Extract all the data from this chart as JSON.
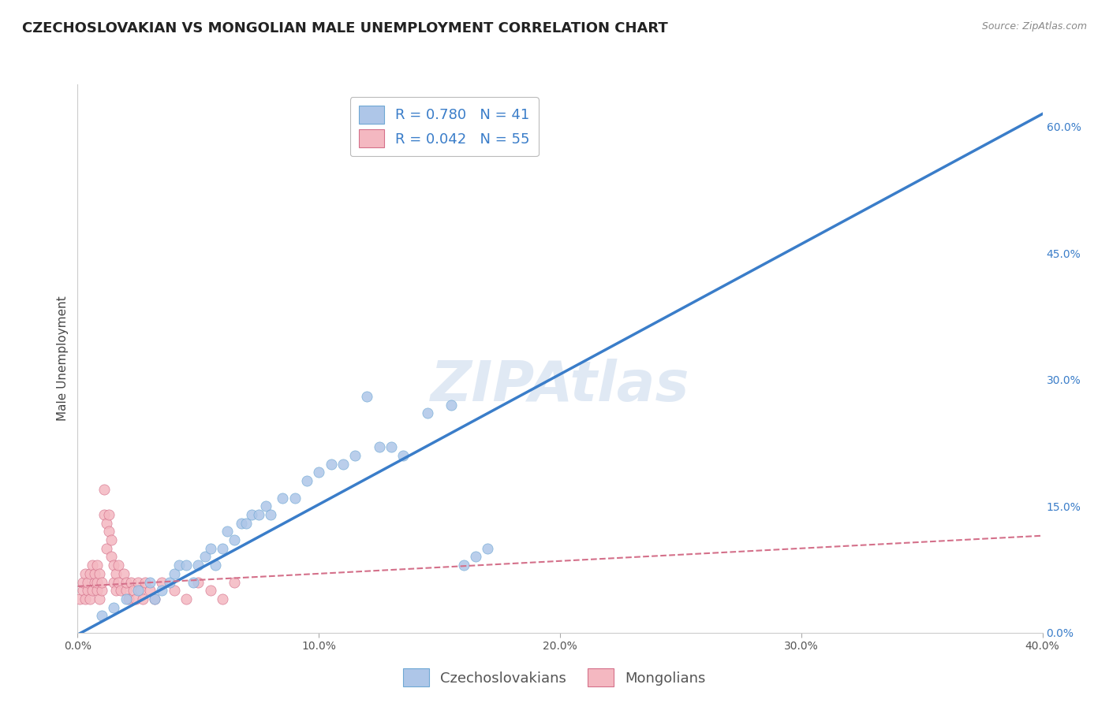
{
  "title": "CZECHOSLOVAKIAN VS MONGOLIAN MALE UNEMPLOYMENT CORRELATION CHART",
  "source": "Source: ZipAtlas.com",
  "ylabel": "Male Unemployment",
  "watermark": "ZIPAtlas",
  "legend_entries": [
    {
      "label": "R = 0.780   N = 41",
      "color": "#aec6e8"
    },
    {
      "label": "R = 0.042   N = 55",
      "color": "#f4b8c1"
    }
  ],
  "xlim": [
    0.0,
    0.4
  ],
  "ylim": [
    0.0,
    0.65
  ],
  "xticks": [
    0.0,
    0.1,
    0.2,
    0.3,
    0.4
  ],
  "xtick_labels": [
    "0.0%",
    "10.0%",
    "20.0%",
    "30.0%",
    "40.0%"
  ],
  "yticks_right": [
    0.0,
    0.15,
    0.3,
    0.45,
    0.6
  ],
  "ytick_labels_right": [
    "0.0%",
    "15.0%",
    "30.0%",
    "45.0%",
    "60.0%"
  ],
  "blue_scatter_x": [
    0.01,
    0.015,
    0.02,
    0.025,
    0.03,
    0.032,
    0.035,
    0.038,
    0.04,
    0.042,
    0.045,
    0.048,
    0.05,
    0.053,
    0.055,
    0.057,
    0.06,
    0.062,
    0.065,
    0.068,
    0.07,
    0.072,
    0.075,
    0.078,
    0.08,
    0.085,
    0.09,
    0.095,
    0.1,
    0.105,
    0.11,
    0.115,
    0.12,
    0.125,
    0.13,
    0.135,
    0.145,
    0.155,
    0.16,
    0.165,
    0.17
  ],
  "blue_scatter_y": [
    0.02,
    0.03,
    0.04,
    0.05,
    0.06,
    0.04,
    0.05,
    0.06,
    0.07,
    0.08,
    0.08,
    0.06,
    0.08,
    0.09,
    0.1,
    0.08,
    0.1,
    0.12,
    0.11,
    0.13,
    0.13,
    0.14,
    0.14,
    0.15,
    0.14,
    0.16,
    0.16,
    0.18,
    0.19,
    0.2,
    0.2,
    0.21,
    0.28,
    0.22,
    0.22,
    0.21,
    0.26,
    0.27,
    0.08,
    0.09,
    0.1
  ],
  "pink_scatter_x": [
    0.001,
    0.002,
    0.002,
    0.003,
    0.003,
    0.004,
    0.004,
    0.005,
    0.005,
    0.006,
    0.006,
    0.007,
    0.007,
    0.008,
    0.008,
    0.008,
    0.009,
    0.009,
    0.01,
    0.01,
    0.011,
    0.011,
    0.012,
    0.012,
    0.013,
    0.013,
    0.014,
    0.014,
    0.015,
    0.015,
    0.016,
    0.016,
    0.017,
    0.017,
    0.018,
    0.019,
    0.02,
    0.02,
    0.021,
    0.022,
    0.023,
    0.024,
    0.025,
    0.026,
    0.027,
    0.028,
    0.03,
    0.032,
    0.035,
    0.04,
    0.045,
    0.05,
    0.055,
    0.06,
    0.065
  ],
  "pink_scatter_y": [
    0.04,
    0.05,
    0.06,
    0.04,
    0.07,
    0.05,
    0.06,
    0.04,
    0.07,
    0.05,
    0.08,
    0.06,
    0.07,
    0.05,
    0.06,
    0.08,
    0.04,
    0.07,
    0.05,
    0.06,
    0.17,
    0.14,
    0.13,
    0.1,
    0.14,
    0.12,
    0.11,
    0.09,
    0.08,
    0.06,
    0.07,
    0.05,
    0.06,
    0.08,
    0.05,
    0.07,
    0.05,
    0.06,
    0.04,
    0.06,
    0.05,
    0.04,
    0.06,
    0.05,
    0.04,
    0.06,
    0.05,
    0.04,
    0.06,
    0.05,
    0.04,
    0.06,
    0.05,
    0.04,
    0.06
  ],
  "blue_line_x": [
    -0.005,
    0.4
  ],
  "blue_line_y": [
    -0.01,
    0.615
  ],
  "pink_line_x": [
    0.0,
    0.4
  ],
  "pink_line_y": [
    0.055,
    0.115
  ],
  "dot_size": 90,
  "blue_dot_color": "#aec6e8",
  "blue_dot_edge": "#6fa8d4",
  "pink_dot_color": "#f4b8c1",
  "pink_dot_edge": "#d4708a",
  "blue_line_color": "#3a7dc9",
  "pink_line_color": "#d4708a",
  "grid_color": "#cccccc",
  "background_color": "#ffffff",
  "title_fontsize": 13,
  "axis_fontsize": 11,
  "tick_fontsize": 10,
  "legend_fontsize": 13
}
